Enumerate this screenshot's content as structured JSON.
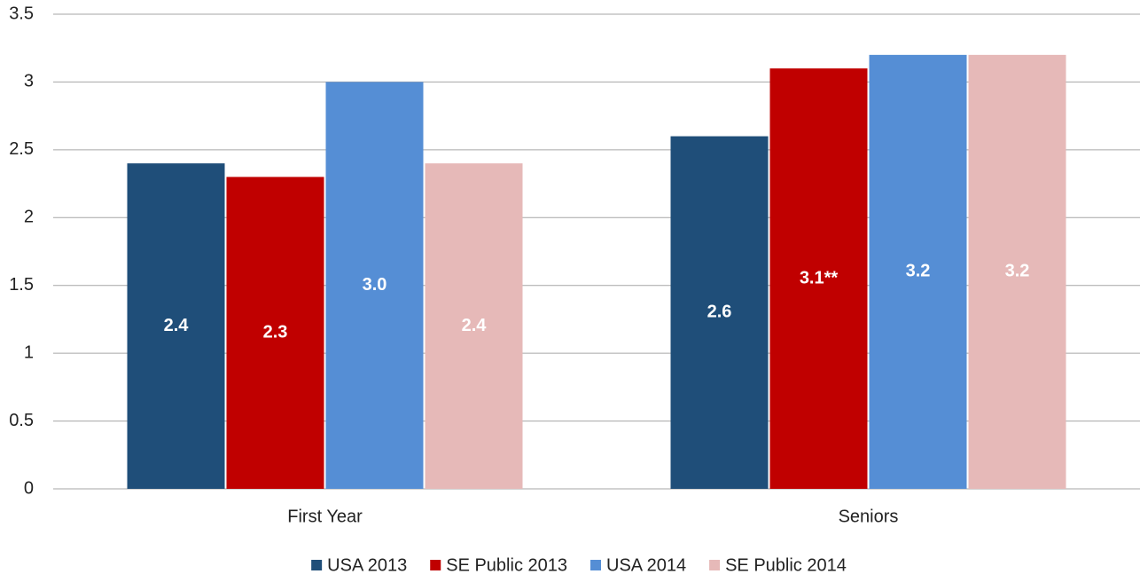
{
  "chart_data": {
    "type": "bar",
    "categories": [
      "First Year",
      "Seniors"
    ],
    "series": [
      {
        "name": "USA 2013",
        "color": "#1f4e79",
        "values": [
          2.4,
          2.6
        ],
        "value_labels": [
          "2.4",
          "2.6"
        ]
      },
      {
        "name": "SE Public 2013",
        "color": "#c00000",
        "values": [
          2.3,
          3.1
        ],
        "value_labels": [
          "2.3",
          "3.1**"
        ]
      },
      {
        "name": "USA 2014",
        "color": "#558ed5",
        "values": [
          3.0,
          3.2
        ],
        "value_labels": [
          "3.0",
          "3.2"
        ]
      },
      {
        "name": "SE Public 2014",
        "color": "#e6b9b8",
        "values": [
          2.4,
          3.2
        ],
        "value_labels": [
          "2.4",
          "3.2"
        ]
      }
    ],
    "ylim": [
      0,
      3.5
    ],
    "yticks": [
      0,
      0.5,
      1,
      1.5,
      2,
      2.5,
      3,
      3.5
    ],
    "grid": true,
    "legend": "bottom"
  }
}
